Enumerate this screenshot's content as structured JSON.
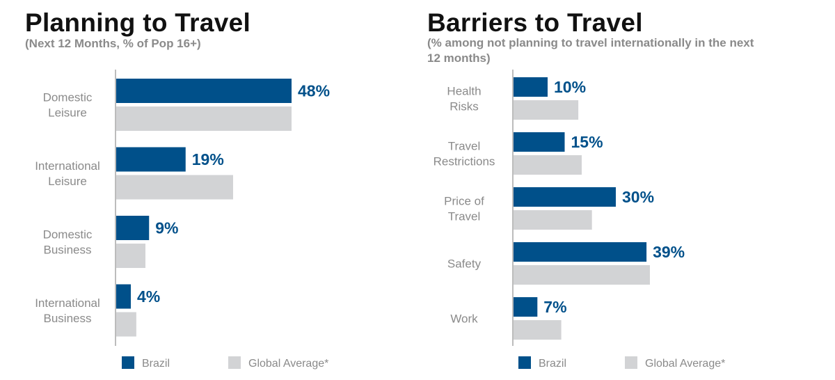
{
  "colors": {
    "brazil": "#00508a",
    "global": "#d2d3d5",
    "axis": "#a6a6a6"
  },
  "chart_data": [
    {
      "type": "bar",
      "orientation": "horizontal",
      "title": "Planning to Travel",
      "subtitle": "(Next 12 Months, % of Pop 16+)",
      "categories": [
        [
          "Domestic",
          "Leisure"
        ],
        [
          "International",
          "Leisure"
        ],
        [
          "Domestic",
          "Business"
        ],
        [
          "International",
          "Business"
        ]
      ],
      "series": [
        {
          "name": "Brazil",
          "values": [
            48,
            19,
            9,
            4
          ],
          "labels": [
            "48%",
            "19%",
            "9%",
            "4%"
          ]
        },
        {
          "name": "Global Average*",
          "values": [
            48,
            32,
            8,
            5.5
          ]
        }
      ],
      "xlim": [
        0,
        60
      ],
      "grid": false,
      "legend": "bottom"
    },
    {
      "type": "bar",
      "orientation": "horizontal",
      "title": "Barriers to Travel",
      "subtitle": "(% among not planning to travel internationally in the next 12 months)",
      "categories": [
        [
          "Health",
          "Risks"
        ],
        [
          "Travel",
          "Restrictions"
        ],
        [
          "Price of",
          "Travel"
        ],
        [
          "Safety"
        ],
        [
          "Work"
        ]
      ],
      "series": [
        {
          "name": "Brazil",
          "values": [
            10,
            15,
            30,
            39,
            7
          ],
          "labels": [
            "10%",
            "15%",
            "30%",
            "39%",
            "7%"
          ]
        },
        {
          "name": "Global Average*",
          "values": [
            19,
            20,
            23,
            40,
            14
          ]
        }
      ],
      "xlim": [
        0,
        60
      ],
      "grid": false,
      "legend": "bottom"
    }
  ]
}
